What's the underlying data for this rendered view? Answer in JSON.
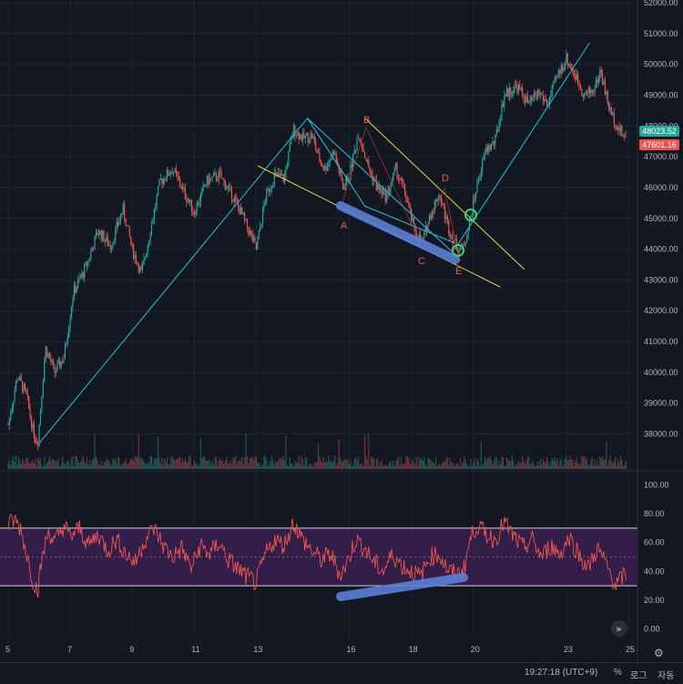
{
  "chart_data": {
    "type": "candlestick",
    "price_axis": {
      "ticks": [
        "52000.00",
        "51000.00",
        "50000.00",
        "49000.00",
        "48000.00",
        "47000.00",
        "46000.00",
        "45000.00",
        "44000.00",
        "43000.00",
        "42000.00",
        "41000.00",
        "40000.00",
        "39000.00",
        "38000.00"
      ],
      "ylim": [
        37500,
        52200
      ]
    },
    "time_axis": {
      "ticks": [
        "5",
        "7",
        "9",
        "11",
        "13",
        "16",
        "18",
        "20",
        "23",
        "25"
      ]
    },
    "close_series": [
      [
        5.0,
        38300
      ],
      [
        5.3,
        39900
      ],
      [
        5.6,
        39200
      ],
      [
        5.8,
        38100
      ],
      [
        5.95,
        37700
      ],
      [
        6.2,
        40800
      ],
      [
        6.5,
        40000
      ],
      [
        6.8,
        40500
      ],
      [
        7.1,
        42600
      ],
      [
        7.5,
        43400
      ],
      [
        7.9,
        44600
      ],
      [
        8.3,
        44100
      ],
      [
        8.7,
        45300
      ],
      [
        9.0,
        44000
      ],
      [
        9.3,
        43200
      ],
      [
        9.6,
        44700
      ],
      [
        9.9,
        46200
      ],
      [
        10.3,
        46600
      ],
      [
        10.7,
        45800
      ],
      [
        11.0,
        45200
      ],
      [
        11.4,
        46200
      ],
      [
        11.8,
        46400
      ],
      [
        12.2,
        45800
      ],
      [
        12.5,
        45200
      ],
      [
        12.8,
        44500
      ],
      [
        13.0,
        44000
      ],
      [
        13.3,
        45700
      ],
      [
        13.6,
        46400
      ],
      [
        13.9,
        46300
      ],
      [
        14.2,
        47900
      ],
      [
        14.5,
        47600
      ],
      [
        14.8,
        47700
      ],
      [
        15.0,
        47000
      ],
      [
        15.2,
        46600
      ],
      [
        15.5,
        47200
      ],
      [
        15.8,
        46000
      ],
      [
        16.0,
        46400
      ],
      [
        16.3,
        47800
      ],
      [
        16.6,
        46700
      ],
      [
        16.9,
        46000
      ],
      [
        17.2,
        45700
      ],
      [
        17.5,
        46600
      ],
      [
        17.8,
        45800
      ],
      [
        18.1,
        44600
      ],
      [
        18.35,
        44200
      ],
      [
        18.6,
        45100
      ],
      [
        18.9,
        45800
      ],
      [
        19.2,
        44700
      ],
      [
        19.45,
        44100
      ],
      [
        19.65,
        44000
      ],
      [
        19.85,
        44700
      ],
      [
        20.1,
        46000
      ],
      [
        20.4,
        47200
      ],
      [
        20.7,
        47500
      ],
      [
        21.0,
        49000
      ],
      [
        21.4,
        49300
      ],
      [
        21.8,
        48700
      ],
      [
        22.1,
        49100
      ],
      [
        22.4,
        48700
      ],
      [
        22.7,
        49600
      ],
      [
        23.0,
        50200
      ],
      [
        23.3,
        49600
      ],
      [
        23.6,
        49000
      ],
      [
        23.9,
        49200
      ],
      [
        24.1,
        49800
      ],
      [
        24.4,
        48500
      ],
      [
        24.7,
        47900
      ],
      [
        24.9,
        47600
      ]
    ],
    "last_price_labels": {
      "price_a": "48023.52",
      "price_b": "47601.16"
    },
    "pattern_points": {
      "a": "A",
      "b": "B",
      "c": "C",
      "d": "D",
      "e": "E"
    },
    "rsi": {
      "ticks": [
        "100.00",
        "80.00",
        "60.00",
        "40.00",
        "20.00",
        "0.00"
      ],
      "overbought": 70,
      "oversold": 30,
      "series": [
        [
          5.0,
          72
        ],
        [
          5.2,
          76
        ],
        [
          5.4,
          70
        ],
        [
          5.6,
          52
        ],
        [
          5.8,
          34
        ],
        [
          5.95,
          26
        ],
        [
          6.1,
          50
        ],
        [
          6.3,
          68
        ],
        [
          6.5,
          60
        ],
        [
          6.8,
          72
        ],
        [
          7.0,
          64
        ],
        [
          7.3,
          70
        ],
        [
          7.6,
          58
        ],
        [
          7.9,
          66
        ],
        [
          8.2,
          55
        ],
        [
          8.5,
          62
        ],
        [
          8.8,
          52
        ],
        [
          9.1,
          46
        ],
        [
          9.4,
          62
        ],
        [
          9.7,
          70
        ],
        [
          10.0,
          58
        ],
        [
          10.3,
          50
        ],
        [
          10.6,
          56
        ],
        [
          10.9,
          42
        ],
        [
          11.2,
          58
        ],
        [
          11.5,
          52
        ],
        [
          11.8,
          60
        ],
        [
          12.1,
          48
        ],
        [
          12.4,
          42
        ],
        [
          12.7,
          36
        ],
        [
          13.0,
          32
        ],
        [
          13.3,
          52
        ],
        [
          13.6,
          62
        ],
        [
          13.9,
          58
        ],
        [
          14.2,
          74
        ],
        [
          14.5,
          62
        ],
        [
          14.8,
          54
        ],
        [
          15.1,
          48
        ],
        [
          15.4,
          52
        ],
        [
          15.7,
          38
        ],
        [
          15.9,
          44
        ],
        [
          16.2,
          62
        ],
        [
          16.5,
          56
        ],
        [
          16.8,
          46
        ],
        [
          17.1,
          40
        ],
        [
          17.4,
          52
        ],
        [
          17.7,
          44
        ],
        [
          18.0,
          40
        ],
        [
          18.3,
          36
        ],
        [
          18.6,
          50
        ],
        [
          18.9,
          52
        ],
        [
          19.2,
          40
        ],
        [
          19.5,
          38
        ],
        [
          19.7,
          42
        ],
        [
          19.9,
          62
        ],
        [
          20.1,
          72
        ],
        [
          20.4,
          66
        ],
        [
          20.7,
          62
        ],
        [
          21.0,
          74
        ],
        [
          21.3,
          64
        ],
        [
          21.6,
          56
        ],
        [
          21.9,
          62
        ],
        [
          22.2,
          50
        ],
        [
          22.5,
          58
        ],
        [
          22.8,
          52
        ],
        [
          23.1,
          64
        ],
        [
          23.4,
          52
        ],
        [
          23.7,
          42
        ],
        [
          24.0,
          56
        ],
        [
          24.3,
          44
        ],
        [
          24.6,
          30
        ],
        [
          24.9,
          38
        ]
      ]
    }
  },
  "footer": {
    "time": "19:27:18 (UTC+9)",
    "percent": "%",
    "log": "로그",
    "auto": "자동"
  },
  "colors": {
    "up": "#26a69a",
    "down": "#ef5350",
    "bg": "#131722",
    "grid": "#1f2330",
    "trendline": "#26c6da",
    "channel": "#e8d44d",
    "highlight": "#5b7fd6",
    "circle": "#3fd16b",
    "rsi_line": "#ef5350",
    "rsi_band": "#3a2050",
    "badge_a": "#26a69a",
    "badge_b": "#ef5350"
  }
}
